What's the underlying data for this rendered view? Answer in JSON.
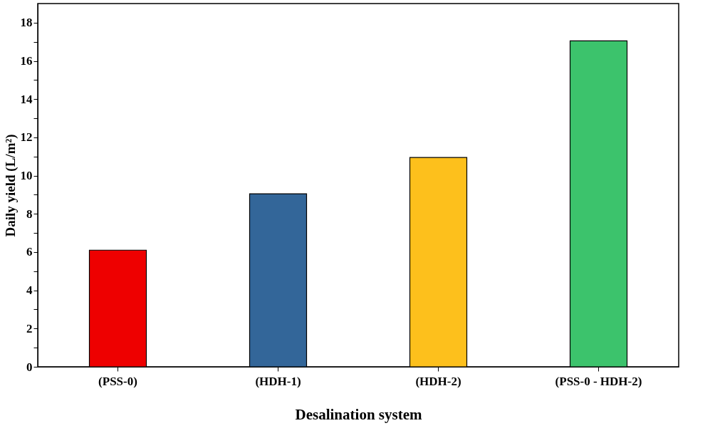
{
  "chart_data": {
    "type": "bar",
    "xlabel": "Desalination system",
    "ylabel": "Daily yield (L/m²)",
    "categories": [
      "(PSS-0)",
      "(HDH-1)",
      "(HDH-2)",
      "(PSS-0 - HDH-2)"
    ],
    "values": [
      6.1,
      9.05,
      10.95,
      17.05
    ],
    "colors": [
      "#ee0000",
      "#336699",
      "#fdc01c",
      "#3cc36c"
    ],
    "ylim": [
      0,
      19
    ],
    "yticks": [
      0,
      {
        "value": 1,
        "label": null
      },
      2,
      {
        "value": 3,
        "label": null
      },
      4,
      {
        "value": 5,
        "label": null
      },
      6,
      {
        "value": 7,
        "label": null
      },
      8,
      {
        "value": 9,
        "label": null
      },
      10,
      {
        "value": 11,
        "label": null
      },
      12,
      {
        "value": 13,
        "label": null
      },
      14,
      {
        "value": 15,
        "label": null
      },
      16,
      {
        "value": 17,
        "label": null
      },
      18
    ],
    "grid": false,
    "legend": false
  }
}
